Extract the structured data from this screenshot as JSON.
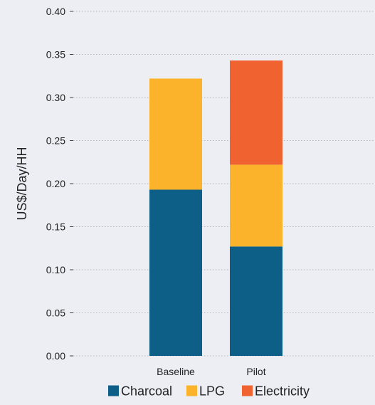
{
  "chart_data": {
    "type": "bar",
    "stacked": true,
    "categories": [
      "Baseline",
      "Pilot"
    ],
    "series": [
      {
        "name": "Charcoal",
        "color": "#0e5f87",
        "values": [
          0.193,
          0.127
        ]
      },
      {
        "name": "LPG",
        "color": "#fbb32c",
        "values": [
          0.129,
          0.095
        ]
      },
      {
        "name": "Electricity",
        "color": "#f06331",
        "values": [
          0.0,
          0.121
        ]
      }
    ],
    "title": "",
    "xlabel": "",
    "ylabel": "US$/Day/HH",
    "ylim": [
      0,
      0.4
    ],
    "yticks": [
      "0.00",
      "0.05",
      "0.10",
      "0.15",
      "0.20",
      "0.25",
      "0.30",
      "0.35",
      "0.40"
    ],
    "grid": true,
    "legend_position": "bottom"
  }
}
